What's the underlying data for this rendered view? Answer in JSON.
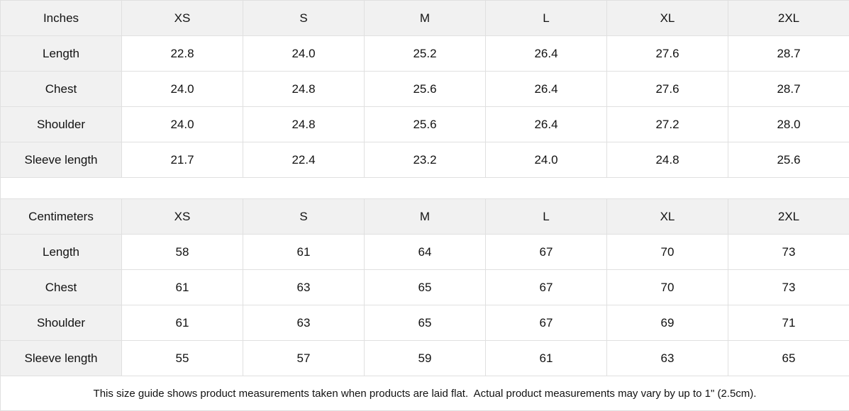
{
  "size_guide": {
    "columns": [
      "XS",
      "S",
      "M",
      "L",
      "XL",
      "2XL"
    ],
    "tables": [
      {
        "unit_label": "Inches",
        "rows": [
          {
            "label": "Length",
            "values": [
              "22.8",
              "24.0",
              "25.2",
              "26.4",
              "27.6",
              "28.7"
            ]
          },
          {
            "label": "Chest",
            "values": [
              "24.0",
              "24.8",
              "25.6",
              "26.4",
              "27.6",
              "28.7"
            ]
          },
          {
            "label": "Shoulder",
            "values": [
              "24.0",
              "24.8",
              "25.6",
              "26.4",
              "27.2",
              "28.0"
            ]
          },
          {
            "label": "Sleeve length",
            "values": [
              "21.7",
              "22.4",
              "23.2",
              "24.0",
              "24.8",
              "25.6"
            ]
          }
        ]
      },
      {
        "unit_label": "Centimeters",
        "rows": [
          {
            "label": "Length",
            "values": [
              "58",
              "61",
              "64",
              "67",
              "70",
              "73"
            ]
          },
          {
            "label": "Chest",
            "values": [
              "61",
              "63",
              "65",
              "67",
              "70",
              "73"
            ]
          },
          {
            "label": "Shoulder",
            "values": [
              "61",
              "63",
              "65",
              "67",
              "69",
              "71"
            ]
          },
          {
            "label": "Sleeve length",
            "values": [
              "55",
              "57",
              "59",
              "61",
              "63",
              "65"
            ]
          }
        ]
      }
    ],
    "footnote": "This size guide shows product measurements taken when products are laid flat.  Actual product measurements may vary by up to 1\" (2.5cm).",
    "colors": {
      "header_background": "#f1f1f1",
      "border": "#e0e0e0",
      "cell_background": "#ffffff",
      "text": "#121212"
    }
  },
  "chart_data": {
    "type": "table",
    "title": "Size guide",
    "categories": [
      "XS",
      "S",
      "M",
      "L",
      "XL",
      "2XL"
    ],
    "series": [
      {
        "name": "Length (inches)",
        "values": [
          22.8,
          24.0,
          25.2,
          26.4,
          27.6,
          28.7
        ]
      },
      {
        "name": "Chest (inches)",
        "values": [
          24.0,
          24.8,
          25.6,
          26.4,
          27.6,
          28.7
        ]
      },
      {
        "name": "Shoulder (inches)",
        "values": [
          24.0,
          24.8,
          25.6,
          26.4,
          27.2,
          28.0
        ]
      },
      {
        "name": "Sleeve length (inches)",
        "values": [
          21.7,
          22.4,
          23.2,
          24.0,
          24.8,
          25.6
        ]
      },
      {
        "name": "Length (cm)",
        "values": [
          58,
          61,
          64,
          67,
          70,
          73
        ]
      },
      {
        "name": "Chest (cm)",
        "values": [
          61,
          63,
          65,
          67,
          70,
          73
        ]
      },
      {
        "name": "Shoulder (cm)",
        "values": [
          61,
          63,
          65,
          67,
          69,
          71
        ]
      },
      {
        "name": "Sleeve length (cm)",
        "values": [
          55,
          57,
          59,
          61,
          63,
          65
        ]
      }
    ]
  }
}
